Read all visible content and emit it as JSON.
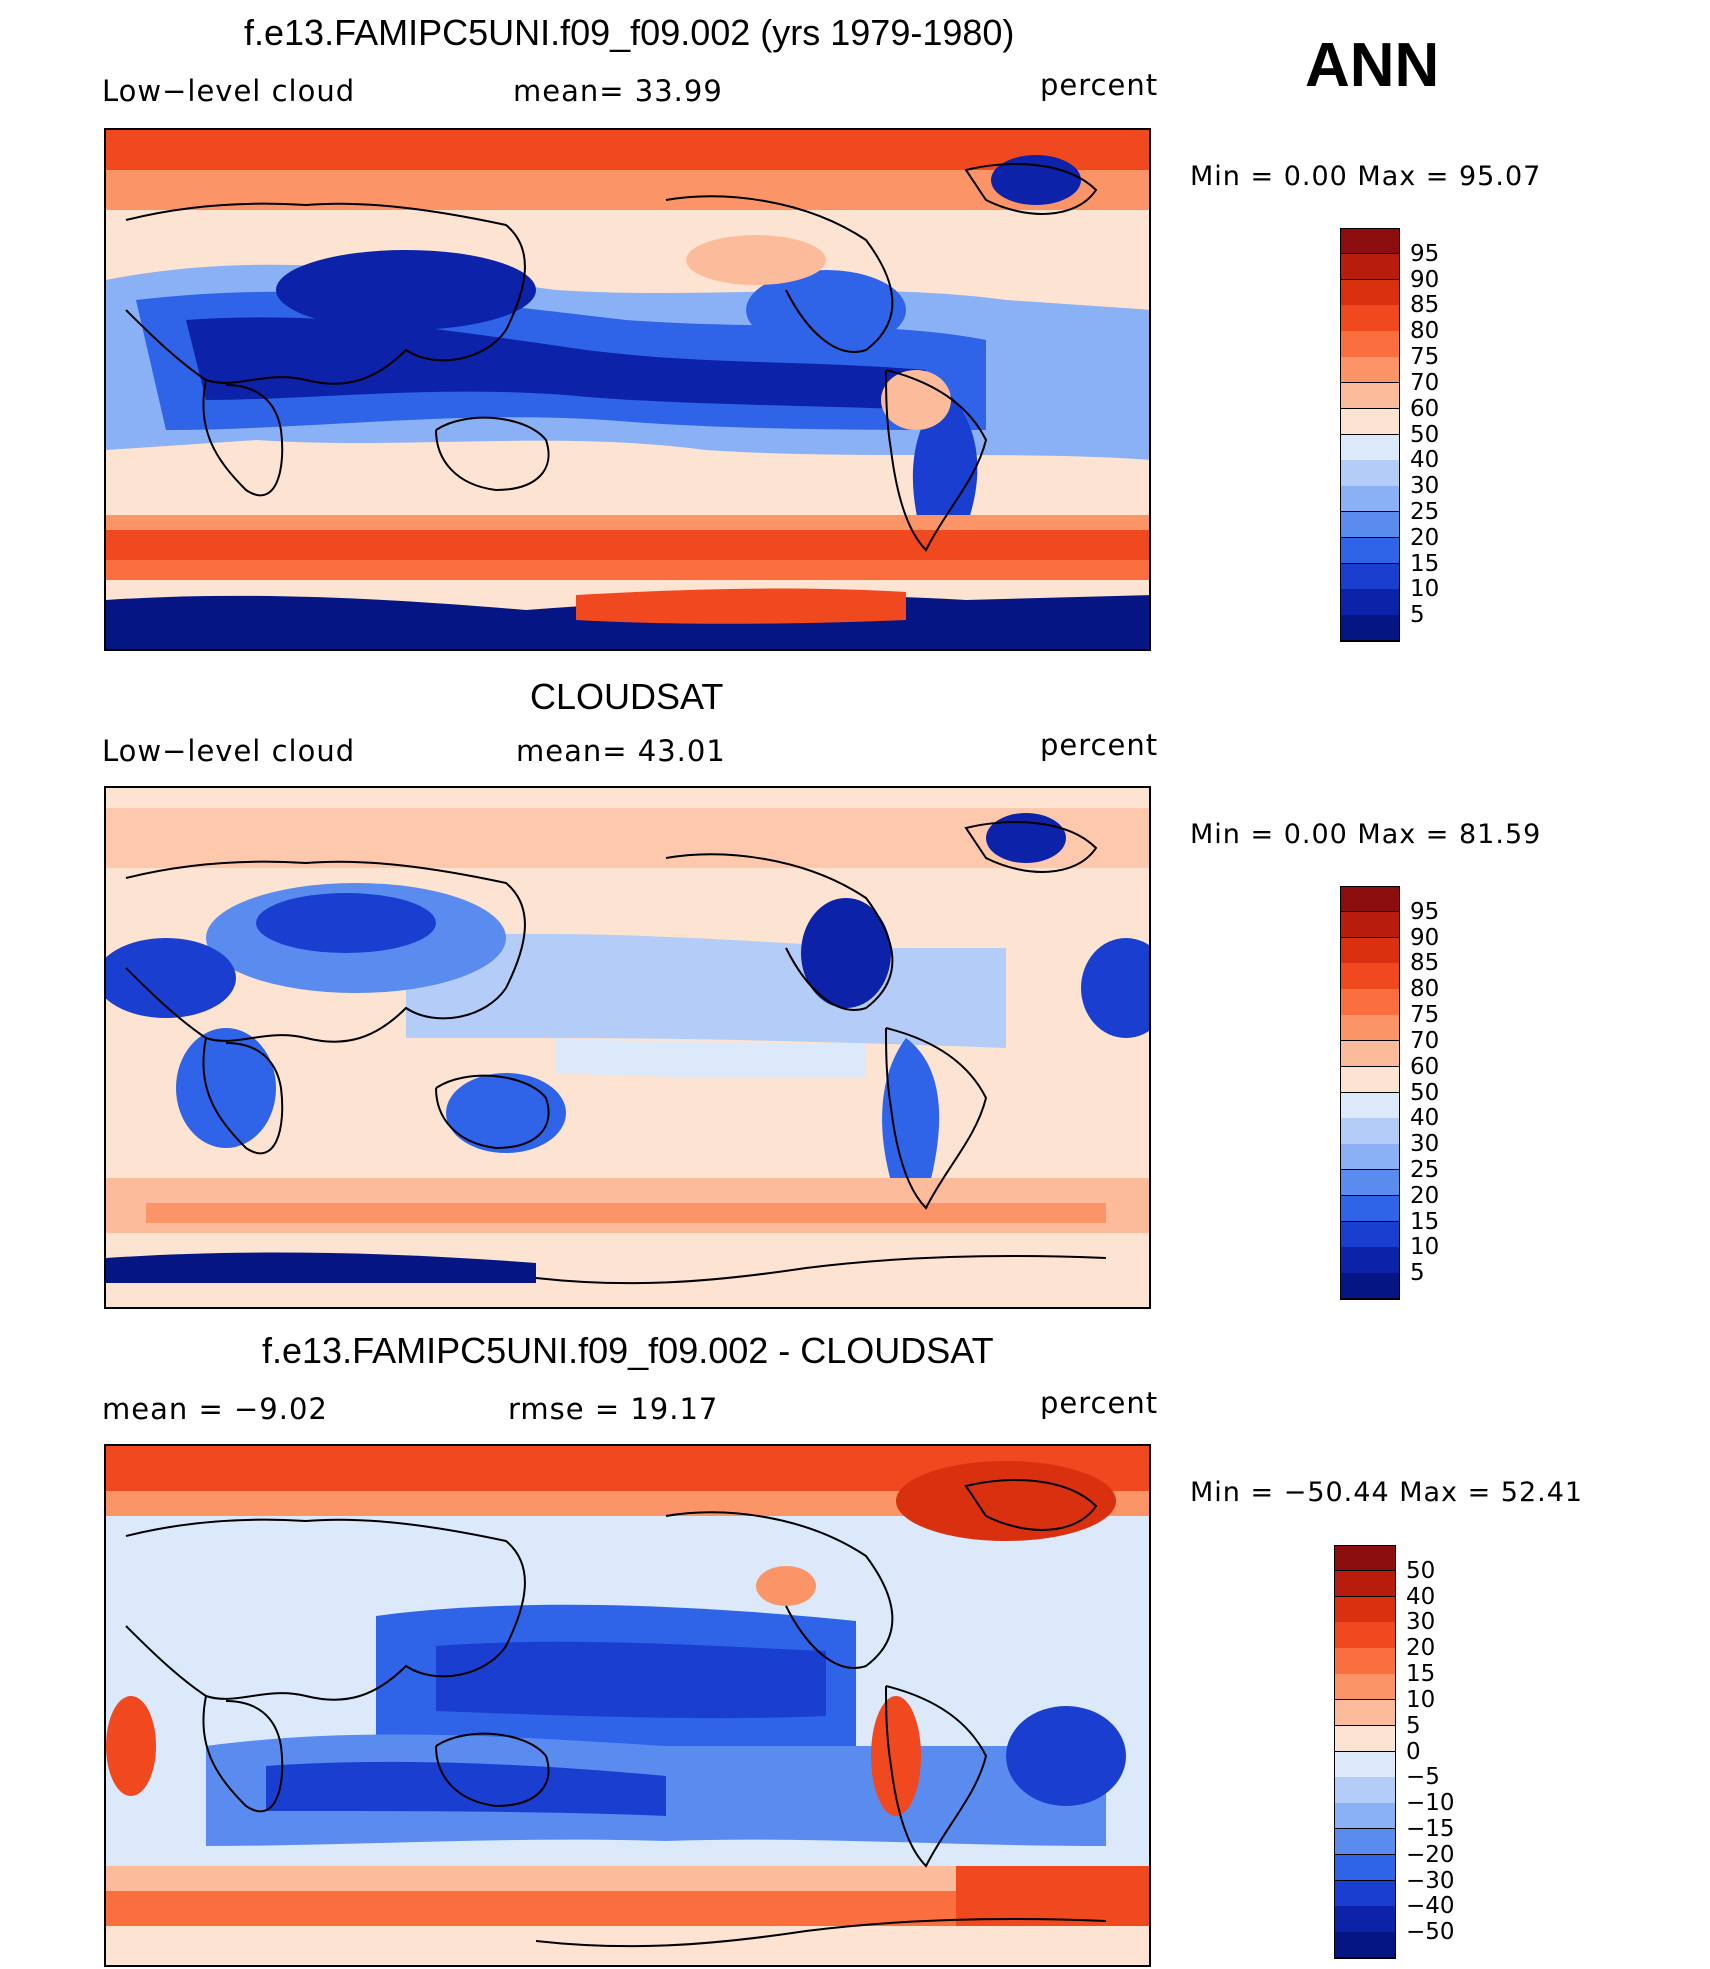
{
  "page": {
    "season": "ANN"
  },
  "panels": [
    {
      "title": "f.e13.FAMIPC5UNI.f09_f09.002 (yrs 1979-1980)",
      "left_label": "Low−level  cloud",
      "center_label": "mean=   33.99",
      "units": "percent",
      "minmax": "Min  =      0.00  Max  =     95.07",
      "levels": [
        "95",
        "90",
        "85",
        "80",
        "75",
        "70",
        "60",
        "50",
        "40",
        "30",
        "25",
        "20",
        "15",
        "10",
        "5"
      ],
      "colors": [
        "#8c0d0d",
        "#b71c0c",
        "#d9300f",
        "#f0481f",
        "#fb6e3e",
        "#fb9466",
        "#fcbc9b",
        "#fde3d2",
        "#dbe9fb",
        "#b4cdf8",
        "#8ab0f5",
        "#5a8cf0",
        "#2f63e8",
        "#1a3fd0",
        "#0c22a8",
        "#051584"
      ]
    },
    {
      "title": "CLOUDSAT",
      "left_label": "Low−level  cloud",
      "center_label": "mean=   43.01",
      "units": "percent",
      "minmax": "Min  =      0.00  Max  =     81.59",
      "levels": [
        "95",
        "90",
        "85",
        "80",
        "75",
        "70",
        "60",
        "50",
        "40",
        "30",
        "25",
        "20",
        "15",
        "10",
        "5"
      ],
      "colors": [
        "#8c0d0d",
        "#b71c0c",
        "#d9300f",
        "#f0481f",
        "#fb6e3e",
        "#fb9466",
        "#fcbc9b",
        "#fde3d2",
        "#dbe9fb",
        "#b4cdf8",
        "#8ab0f5",
        "#5a8cf0",
        "#2f63e8",
        "#1a3fd0",
        "#0c22a8",
        "#051584"
      ]
    },
    {
      "title": "f.e13.FAMIPC5UNI.f09_f09.002 - CLOUDSAT",
      "left_label": "mean  =    −9.02",
      "center_label": "rmse  =    19.17",
      "units": "percent",
      "minmax": "Min  = −50.44  Max  =    52.41",
      "levels": [
        "50",
        "40",
        "30",
        "20",
        "15",
        "10",
        "5",
        "0",
        "−5",
        "−10",
        "−15",
        "−20",
        "−30",
        "−40",
        "−50"
      ],
      "colors": [
        "#8c0d0d",
        "#b71c0c",
        "#d9300f",
        "#f0481f",
        "#fb6e3e",
        "#fb9466",
        "#fcbc9b",
        "#fde3d2",
        "#dbe9fb",
        "#b4cdf8",
        "#8ab0f5",
        "#5a8cf0",
        "#2f63e8",
        "#1a3fd0",
        "#0c22a8",
        "#051584"
      ]
    }
  ]
}
